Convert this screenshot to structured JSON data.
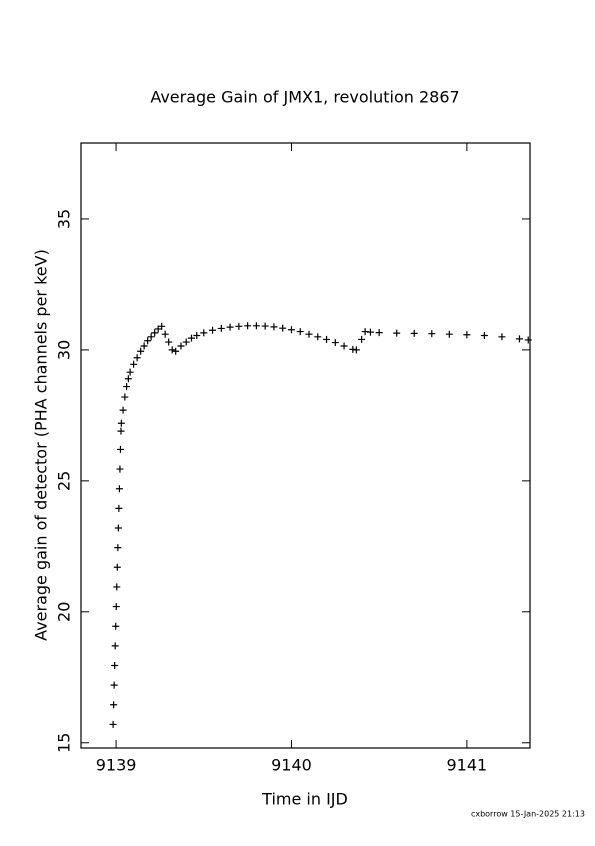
{
  "chart_data": {
    "type": "scatter",
    "title": "Average Gain of JMX1, revolution 2867",
    "xlabel": "Time in IJD",
    "ylabel": "Average gain of detector (PHA channels per keV)",
    "footer": "cxborrow 15-Jan-2025 21:13",
    "color": "#000000",
    "xlim": [
      9138.8,
      9141.36
    ],
    "ylim": [
      14.8,
      37.9
    ],
    "xticks": [
      9139,
      9140,
      9141
    ],
    "yticks": [
      15,
      20,
      25,
      30,
      35
    ],
    "series": [
      {
        "name": "JMX1",
        "x": [
          9138.983,
          9138.986,
          9138.989,
          9138.992,
          9138.995,
          9138.998,
          9139.001,
          9139.004,
          9139.007,
          9139.01,
          9139.013,
          9139.016,
          9139.019,
          9139.022,
          9139.025,
          9139.028,
          9139.03,
          9139.04,
          9139.05,
          9139.06,
          9139.07,
          9139.08,
          9139.1,
          9139.12,
          9139.14,
          9139.16,
          9139.18,
          9139.2,
          9139.22,
          9139.24,
          9139.26,
          9139.28,
          9139.3,
          9139.32,
          9139.34,
          9139.37,
          9139.4,
          9139.43,
          9139.46,
          9139.5,
          9139.55,
          9139.6,
          9139.65,
          9139.7,
          9139.75,
          9139.8,
          9139.85,
          9139.9,
          9139.95,
          9140.0,
          9140.05,
          9140.1,
          9140.15,
          9140.2,
          9140.25,
          9140.3,
          9140.35,
          9140.37,
          9140.4,
          9140.42,
          9140.45,
          9140.5,
          9140.6,
          9140.7,
          9140.8,
          9140.9,
          9141.0,
          9141.1,
          9141.2,
          9141.3,
          9141.35
        ],
        "values": [
          15.7,
          16.45,
          17.2,
          17.95,
          18.7,
          19.45,
          20.2,
          20.95,
          21.7,
          22.45,
          23.2,
          23.95,
          24.7,
          25.45,
          26.2,
          26.9,
          27.2,
          27.7,
          28.2,
          28.6,
          28.9,
          29.15,
          29.45,
          29.7,
          29.95,
          30.15,
          30.35,
          30.5,
          30.65,
          30.8,
          30.9,
          30.6,
          30.3,
          30.0,
          29.95,
          30.15,
          30.3,
          30.45,
          30.55,
          30.65,
          30.75,
          30.82,
          30.87,
          30.9,
          30.92,
          30.92,
          30.91,
          30.88,
          30.83,
          30.77,
          30.7,
          30.6,
          30.5,
          30.4,
          30.28,
          30.15,
          30.02,
          30.0,
          30.4,
          30.7,
          30.68,
          30.66,
          30.64,
          30.63,
          30.62,
          30.6,
          30.58,
          30.55,
          30.5,
          30.42,
          30.38
        ]
      }
    ]
  }
}
